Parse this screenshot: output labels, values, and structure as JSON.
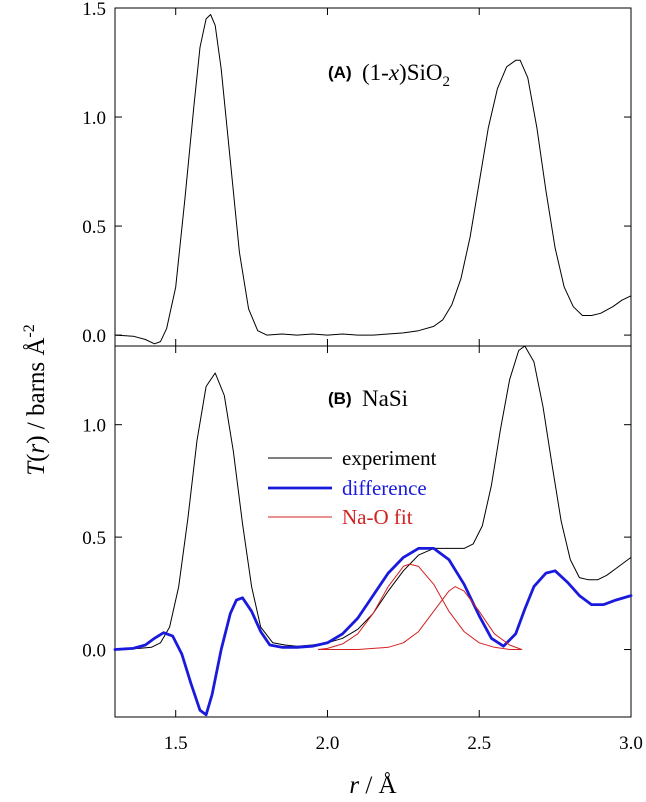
{
  "chart_data": [
    {
      "panel": "A",
      "type": "line",
      "label_letter": "(A)",
      "label_text": "(1-x)SiO2",
      "xlim": [
        1.3,
        3.0
      ],
      "ylim": [
        -0.05,
        1.5
      ],
      "yticks": [
        0.0,
        0.5,
        1.0,
        1.5
      ],
      "ytick_labels": [
        "0.0",
        "0.5",
        "1.0",
        "1.5"
      ],
      "series": [
        {
          "color": "#000000",
          "x": [
            1.3,
            1.36,
            1.4,
            1.43,
            1.45,
            1.47,
            1.5,
            1.53,
            1.56,
            1.58,
            1.6,
            1.615,
            1.63,
            1.65,
            1.68,
            1.71,
            1.74,
            1.77,
            1.8,
            1.85,
            1.9,
            1.95,
            2.0,
            2.05,
            2.1,
            2.15,
            2.2,
            2.25,
            2.3,
            2.35,
            2.38,
            2.41,
            2.44,
            2.47,
            2.5,
            2.53,
            2.56,
            2.59,
            2.62,
            2.635,
            2.66,
            2.69,
            2.72,
            2.75,
            2.78,
            2.81,
            2.84,
            2.87,
            2.9,
            2.94,
            2.97,
            3.0
          ],
          "y": [
            0.0,
            -0.005,
            -0.02,
            -0.04,
            -0.03,
            0.03,
            0.22,
            0.62,
            1.05,
            1.32,
            1.45,
            1.47,
            1.42,
            1.22,
            0.8,
            0.38,
            0.12,
            0.02,
            0.0,
            0.005,
            0.0,
            0.005,
            0.0,
            0.005,
            0.0,
            0.0,
            0.005,
            0.01,
            0.02,
            0.04,
            0.07,
            0.14,
            0.26,
            0.45,
            0.7,
            0.95,
            1.13,
            1.23,
            1.26,
            1.26,
            1.18,
            0.95,
            0.66,
            0.4,
            0.22,
            0.13,
            0.09,
            0.09,
            0.1,
            0.13,
            0.16,
            0.18
          ]
        }
      ]
    },
    {
      "panel": "B",
      "type": "line",
      "label_letter": "(B)",
      "label_text": "NaSi",
      "xlim": [
        1.3,
        3.0
      ],
      "ylim": [
        -0.3,
        1.35
      ],
      "yticks": [
        0.0,
        0.5,
        1.0
      ],
      "ytick_labels": [
        "0.0",
        "0.5",
        "1.0"
      ],
      "xticks": [
        1.5,
        2.0,
        2.5,
        3.0
      ],
      "xtick_labels": [
        "1.5",
        "2.0",
        "2.5",
        "3.0"
      ],
      "legend_position": "center",
      "series": [
        {
          "name": "experiment",
          "color": "#000000",
          "width": 1,
          "x": [
            1.3,
            1.38,
            1.42,
            1.45,
            1.48,
            1.51,
            1.54,
            1.57,
            1.6,
            1.63,
            1.66,
            1.69,
            1.72,
            1.75,
            1.78,
            1.82,
            1.86,
            1.9,
            1.95,
            2.0,
            2.05,
            2.1,
            2.15,
            2.2,
            2.25,
            2.3,
            2.35,
            2.4,
            2.45,
            2.48,
            2.51,
            2.54,
            2.57,
            2.6,
            2.63,
            2.65,
            2.68,
            2.71,
            2.74,
            2.77,
            2.8,
            2.83,
            2.86,
            2.89,
            2.92,
            2.95,
            2.98,
            3.0
          ],
          "y": [
            0.0,
            0.005,
            0.01,
            0.03,
            0.1,
            0.28,
            0.58,
            0.93,
            1.17,
            1.23,
            1.13,
            0.88,
            0.56,
            0.28,
            0.1,
            0.03,
            0.02,
            0.015,
            0.02,
            0.03,
            0.05,
            0.09,
            0.16,
            0.26,
            0.35,
            0.42,
            0.45,
            0.45,
            0.45,
            0.47,
            0.55,
            0.73,
            0.98,
            1.2,
            1.33,
            1.35,
            1.28,
            1.08,
            0.82,
            0.57,
            0.4,
            0.32,
            0.31,
            0.31,
            0.33,
            0.36,
            0.39,
            0.41
          ]
        },
        {
          "name": "difference",
          "color": "#1a1adc",
          "width": 2.8,
          "x": [
            1.3,
            1.36,
            1.4,
            1.43,
            1.46,
            1.49,
            1.52,
            1.55,
            1.58,
            1.6,
            1.62,
            1.65,
            1.68,
            1.7,
            1.72,
            1.75,
            1.78,
            1.81,
            1.85,
            1.9,
            1.95,
            2.0,
            2.05,
            2.1,
            2.15,
            2.2,
            2.25,
            2.3,
            2.35,
            2.4,
            2.45,
            2.5,
            2.54,
            2.58,
            2.62,
            2.65,
            2.68,
            2.72,
            2.75,
            2.79,
            2.83,
            2.87,
            2.91,
            2.95,
            3.0
          ],
          "y": [
            0.0,
            0.005,
            0.02,
            0.05,
            0.075,
            0.06,
            -0.02,
            -0.15,
            -0.27,
            -0.29,
            -0.2,
            0.0,
            0.16,
            0.22,
            0.23,
            0.17,
            0.08,
            0.02,
            0.01,
            0.01,
            0.015,
            0.03,
            0.07,
            0.14,
            0.24,
            0.34,
            0.41,
            0.45,
            0.45,
            0.4,
            0.29,
            0.15,
            0.05,
            0.015,
            0.07,
            0.18,
            0.28,
            0.34,
            0.35,
            0.3,
            0.24,
            0.2,
            0.2,
            0.22,
            0.24
          ]
        },
        {
          "name": "Na-O fit",
          "color": "#d42020",
          "width": 1,
          "x": [
            1.97,
            2.0,
            2.05,
            2.1,
            2.15,
            2.2,
            2.25,
            2.27,
            2.3,
            2.35,
            2.4,
            2.45,
            2.5,
            2.55,
            2.6,
            2.64
          ],
          "y": [
            0.0,
            0.005,
            0.025,
            0.07,
            0.16,
            0.28,
            0.37,
            0.38,
            0.37,
            0.29,
            0.17,
            0.08,
            0.03,
            0.01,
            0.0,
            0.0
          ]
        },
        {
          "color": "#d42020",
          "width": 1,
          "x": [
            1.97,
            2.1,
            2.2,
            2.25,
            2.3,
            2.35,
            2.4,
            2.42,
            2.45,
            2.5,
            2.55,
            2.6,
            2.64
          ],
          "y": [
            0.0,
            0.0,
            0.01,
            0.03,
            0.08,
            0.17,
            0.26,
            0.28,
            0.26,
            0.17,
            0.07,
            0.02,
            0.0
          ]
        }
      ]
    }
  ],
  "ylabel": "T(r) / barns Å-2",
  "xlabel": "r / Å"
}
